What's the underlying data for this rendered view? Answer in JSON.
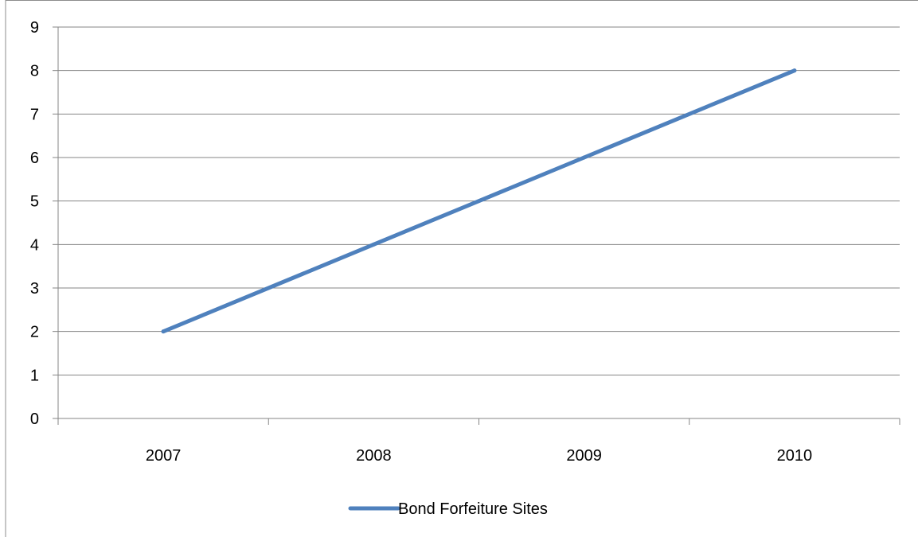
{
  "chart_data": {
    "type": "line",
    "categories": [
      "2007",
      "2008",
      "2009",
      "2010"
    ],
    "series": [
      {
        "name": "Bond Forfeiture Sites",
        "values": [
          2,
          4,
          6,
          8
        ],
        "color": "#4f81bd"
      }
    ],
    "y_ticks": [
      "0",
      "1",
      "2",
      "3",
      "4",
      "5",
      "6",
      "7",
      "8",
      "9"
    ],
    "ylim": [
      0,
      9
    ],
    "grid": true,
    "legend": "bottom",
    "title": "",
    "xlabel": "",
    "ylabel": ""
  }
}
